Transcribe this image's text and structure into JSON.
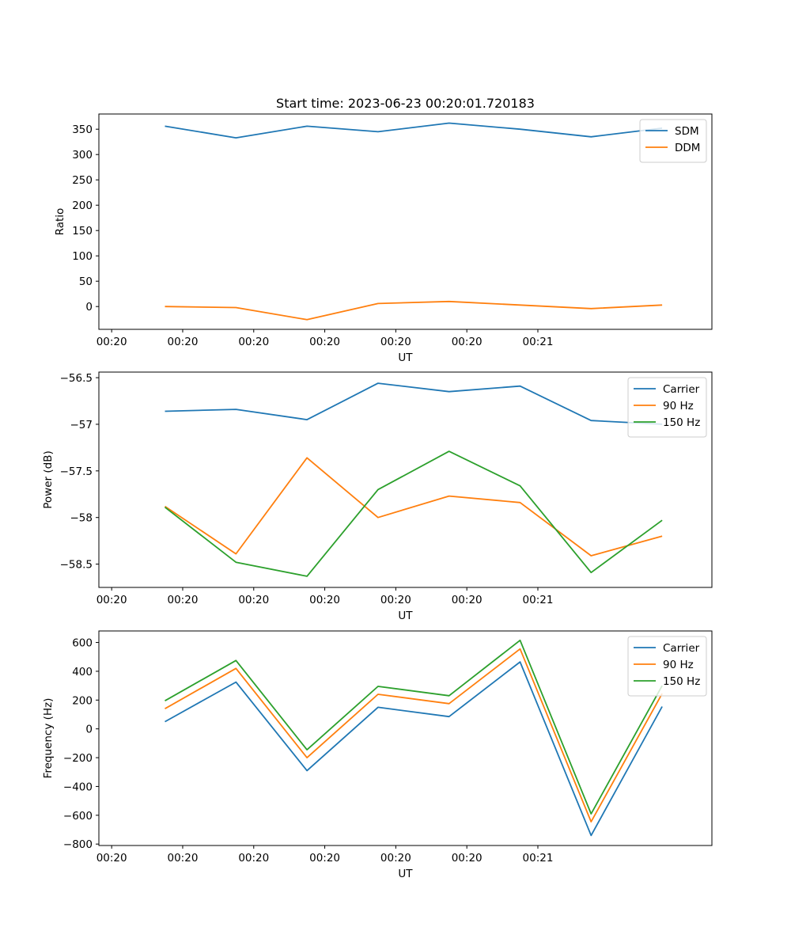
{
  "title": "Start time: 2023-06-23 00:20:01.720183",
  "chart_data": [
    {
      "type": "line",
      "title": "Start time: 2023-06-23 00:20:01.720183",
      "xlabel": "UT",
      "ylabel": "Ratio",
      "x_tick_labels": [
        "00:20",
        "00:20",
        "00:20",
        "00:20",
        "00:20",
        "00:20",
        "00:21"
      ],
      "xlim": [
        -0.18,
        8.45
      ],
      "x": [
        0.75,
        1.75,
        2.75,
        3.75,
        4.75,
        5.75,
        6.75,
        7.75
      ],
      "yticks": [
        0,
        50,
        100,
        150,
        200,
        250,
        300,
        350
      ],
      "ylim": [
        -45,
        380
      ],
      "grid": false,
      "legend_position": "upper right",
      "series": [
        {
          "name": "SDM",
          "color": "#1f77b4",
          "values": [
            356,
            333,
            356,
            345,
            362,
            350,
            335,
            352
          ]
        },
        {
          "name": "DDM",
          "color": "#ff7f0e",
          "values": [
            0,
            -2,
            -26,
            6,
            10,
            3,
            -4,
            3
          ]
        }
      ]
    },
    {
      "type": "line",
      "title": "",
      "xlabel": "UT",
      "ylabel": "Power (dB)",
      "x_tick_labels": [
        "00:20",
        "00:20",
        "00:20",
        "00:20",
        "00:20",
        "00:20",
        "00:21"
      ],
      "xlim": [
        -0.18,
        8.45
      ],
      "x": [
        0.75,
        1.75,
        2.75,
        3.75,
        4.75,
        5.75,
        6.75,
        7.75
      ],
      "yticks": [
        -58.5,
        -58.0,
        -57.5,
        -57.0,
        -56.5
      ],
      "ylim": [
        -58.75,
        -56.44
      ],
      "grid": false,
      "legend_position": "upper right",
      "series": [
        {
          "name": "Carrier",
          "color": "#1f77b4",
          "values": [
            -56.86,
            -56.84,
            -56.95,
            -56.56,
            -56.65,
            -56.59,
            -56.96,
            -57.0
          ]
        },
        {
          "name": "90 Hz",
          "color": "#ff7f0e",
          "values": [
            -57.88,
            -58.39,
            -57.36,
            -58.0,
            -57.77,
            -57.84,
            -58.41,
            -58.2
          ]
        },
        {
          "name": "150 Hz",
          "color": "#2ca02c",
          "values": [
            -57.89,
            -58.48,
            -58.63,
            -57.7,
            -57.29,
            -57.66,
            -58.59,
            -58.03
          ]
        }
      ]
    },
    {
      "type": "line",
      "title": "",
      "xlabel": "UT",
      "ylabel": "Frequency (Hz)",
      "x_tick_labels": [
        "00:20",
        "00:20",
        "00:20",
        "00:20",
        "00:20",
        "00:20",
        "00:21"
      ],
      "xlim": [
        -0.18,
        8.45
      ],
      "x": [
        0.75,
        1.75,
        2.75,
        3.75,
        4.75,
        5.75,
        6.75,
        7.75
      ],
      "yticks": [
        -800,
        -600,
        -400,
        -200,
        0,
        200,
        400,
        600
      ],
      "ylim": [
        -810,
        680
      ],
      "grid": false,
      "legend_position": "upper right",
      "series": [
        {
          "name": "Carrier",
          "color": "#1f77b4",
          "values": [
            50,
            325,
            -290,
            150,
            85,
            465,
            -740,
            155
          ]
        },
        {
          "name": "90 Hz",
          "color": "#ff7f0e",
          "values": [
            140,
            420,
            -200,
            240,
            175,
            555,
            -645,
            245
          ]
        },
        {
          "name": "150 Hz",
          "color": "#2ca02c",
          "values": [
            195,
            475,
            -145,
            295,
            230,
            615,
            -590,
            300
          ]
        }
      ]
    }
  ]
}
